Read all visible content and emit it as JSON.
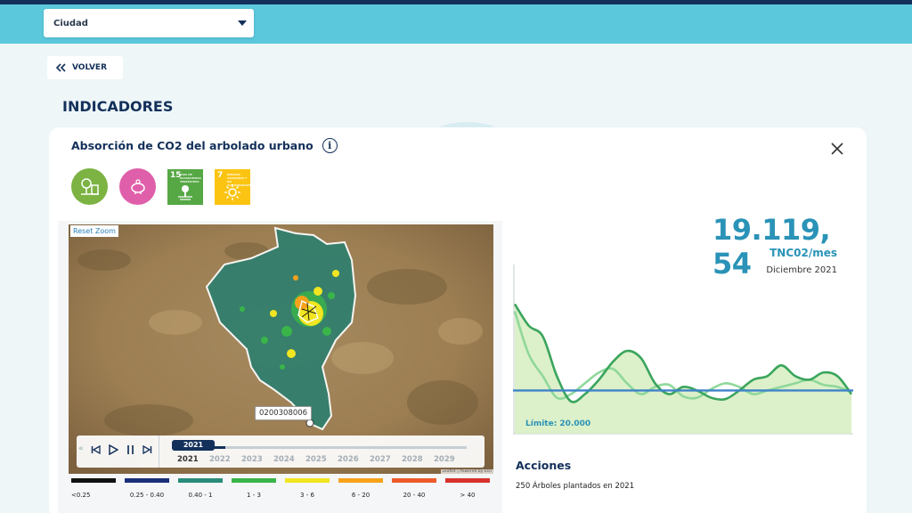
{
  "header": {
    "city_select": {
      "value": "Ciudad"
    }
  },
  "back_button": {
    "label": "VOLVER"
  },
  "page_title": "INDICADORES",
  "indicator": {
    "title": "Absorción de CO2 del arbolado urbano",
    "badges": [
      {
        "type": "circle",
        "icon": "tree-building-icon",
        "color": "#7cb342"
      },
      {
        "type": "circle",
        "icon": "piggy-bank-icon",
        "color": "#e05faa"
      },
      {
        "type": "sdg",
        "number": "15",
        "text": "Vida de ecosistemas terrestres",
        "icon": "land-icon",
        "color": "#56a845"
      },
      {
        "type": "sdg",
        "number": "7",
        "text": "Energía asequible y no contaminante",
        "icon": "sun-icon",
        "color": "#fbc412"
      }
    ],
    "value": "19.119, 54",
    "unit": "TNC02/mes",
    "period": "Diciembre 2021",
    "limit_label": "Límite: 20.000"
  },
  "map": {
    "reset_zoom": "Reset Zoom",
    "tooltip": "0200308006",
    "selected_year": "2021",
    "years": [
      "2021",
      "2022",
      "2023",
      "2024",
      "2025",
      "2026",
      "2027",
      "2028",
      "2029"
    ],
    "timeline_progress": 0.18,
    "attribution": "Leaflet | Powered by Esri"
  },
  "legend": [
    {
      "label": "<0.25",
      "color": "#111111"
    },
    {
      "label": "0.25 - 0.40",
      "color": "#1a2f7a"
    },
    {
      "label": "0.40 - 1",
      "color": "#2a8c7a"
    },
    {
      "label": "1 - 3",
      "color": "#39b54a"
    },
    {
      "label": "3 - 6",
      "color": "#f2e521"
    },
    {
      "label": "6 - 20",
      "color": "#f7a21b"
    },
    {
      "label": "20 - 40",
      "color": "#ee5a2b"
    },
    {
      "label": "> 40",
      "color": "#d7332c"
    }
  ],
  "actions": {
    "title": "Acciones",
    "items": [
      "250 Árboles plantados en 2021"
    ]
  },
  "chart_data": {
    "type": "line",
    "x": [
      0,
      1,
      2,
      3,
      4,
      5,
      6,
      7,
      8,
      9,
      10,
      11,
      12,
      13,
      14,
      15,
      16,
      17,
      18,
      19,
      20,
      21,
      22,
      23,
      24
    ],
    "series": [
      {
        "values": [
          32000,
          29000,
          27500,
          22000,
          18500,
          19500,
          21500,
          24000,
          25500,
          24500,
          21000,
          19500,
          20500,
          20000,
          19000,
          18800,
          20000,
          21500,
          22000,
          23500,
          22000,
          21500,
          22500,
          22000,
          19500
        ]
      },
      {
        "values": [
          31000,
          25000,
          22000,
          19000,
          19500,
          21000,
          22500,
          23000,
          21000,
          19500,
          20500,
          20800,
          19200,
          19000,
          20200,
          21000,
          20500,
          19500,
          20000,
          20500,
          21000,
          21500,
          20800,
          20500,
          19800
        ]
      }
    ],
    "limit": 20000,
    "ylim": [
      14000,
      37000
    ]
  }
}
